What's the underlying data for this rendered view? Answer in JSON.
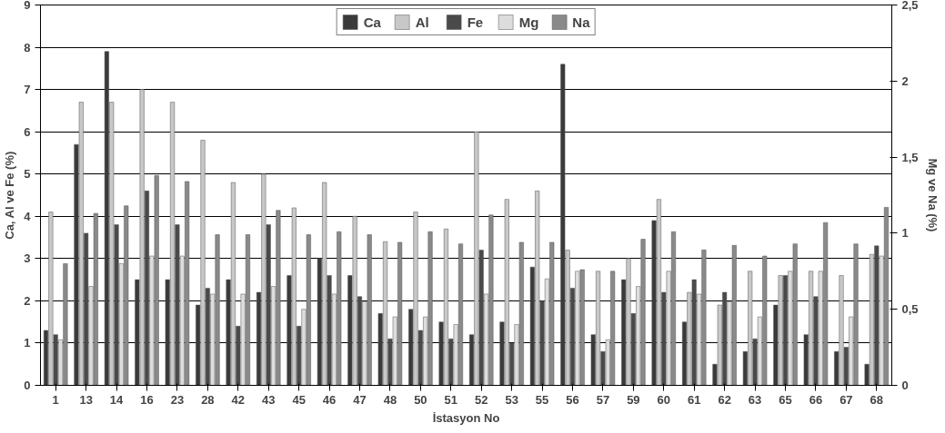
{
  "chart_data": {
    "type": "bar",
    "xlabel": "İstasyon No",
    "ylabel": "Ca, Al ve Fe (%)",
    "y2label": "Mg ve Na (%)",
    "categories": [
      "1",
      "13",
      "14",
      "16",
      "23",
      "28",
      "42",
      "43",
      "45",
      "46",
      "47",
      "48",
      "50",
      "51",
      "52",
      "53",
      "55",
      "56",
      "57",
      "59",
      "60",
      "61",
      "62",
      "63",
      "65",
      "66",
      "67",
      "68"
    ],
    "series": [
      {
        "name": "Ca",
        "color": "#3a3a3a",
        "values": [
          1.3,
          5.7,
          7.9,
          2.5,
          2.5,
          1.9,
          2.5,
          2.2,
          2.6,
          3.0,
          2.6,
          1.7,
          1.8,
          1.5,
          1.2,
          1.5,
          2.8,
          7.6,
          1.2,
          2.5,
          3.9,
          1.5,
          0.5,
          0.8,
          1.9,
          1.2,
          0.8,
          0.5
        ]
      },
      {
        "name": "Al",
        "color": "#c8c8c8",
        "values": [
          4.1,
          6.7,
          6.7,
          7.0,
          6.7,
          5.8,
          4.8,
          5.0,
          4.2,
          4.8,
          4.0,
          3.4,
          4.1,
          3.7,
          6.0,
          4.4,
          4.6,
          3.2,
          2.7,
          3.0,
          4.4,
          2.2,
          1.9,
          2.7,
          2.6,
          2.7,
          2.6,
          3.1
        ]
      },
      {
        "name": "Fe",
        "color": "#4a4a4a",
        "values": [
          1.2,
          3.6,
          3.8,
          4.6,
          3.8,
          2.3,
          1.4,
          3.8,
          1.4,
          2.6,
          2.1,
          1.1,
          1.3,
          1.1,
          3.2,
          1.0,
          2.0,
          2.3,
          0.8,
          1.7,
          2.2,
          2.5,
          2.2,
          1.1,
          2.6,
          2.1,
          0.9,
          3.3
        ]
      },
      {
        "name": "Mg",
        "color": "#dddddd",
        "axis": "y2",
        "values": [
          0.3,
          0.65,
          0.8,
          0.85,
          0.85,
          0.6,
          0.6,
          0.65,
          0.5,
          0.6,
          0.55,
          0.45,
          0.45,
          0.4,
          0.6,
          0.4,
          0.7,
          0.75,
          0.3,
          0.65,
          0.75,
          0.6,
          0.55,
          0.45,
          0.75,
          0.75,
          0.45,
          0.85
        ]
      },
      {
        "name": "Na",
        "color": "#8a8a8a",
        "axis": "y2",
        "values": [
          0.8,
          1.13,
          1.18,
          1.38,
          1.34,
          0.99,
          0.99,
          1.15,
          0.99,
          1.01,
          0.99,
          0.94,
          1.01,
          0.93,
          1.12,
          0.94,
          0.94,
          0.76,
          0.75,
          0.96,
          1.01,
          0.89,
          0.92,
          0.85,
          0.93,
          1.07,
          0.93,
          1.17
        ]
      }
    ],
    "ylim": [
      0,
      9
    ],
    "yticks": [
      0,
      1,
      2,
      3,
      4,
      5,
      6,
      7,
      8,
      9
    ],
    "y2lim": [
      0,
      2.5
    ],
    "y2ticks": [
      0,
      {
        "value": 0.5,
        "label": "0,5"
      },
      1,
      {
        "value": 1.5,
        "label": "1,5"
      },
      2,
      {
        "value": 2.5,
        "label": "2,5"
      }
    ],
    "grid": "y",
    "legend": "top"
  }
}
